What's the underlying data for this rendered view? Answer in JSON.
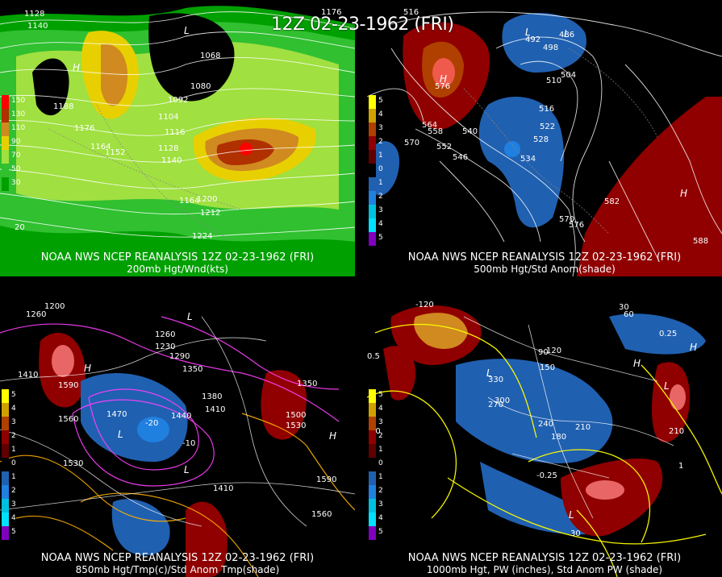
{
  "header": {
    "title": "12Z 02-23-1962 (FRI)"
  },
  "panels": [
    {
      "caption_line1": "NOAA NWS NCEP REANALYSIS 12Z 02-23-1962 (FRI)",
      "caption_line2": "200mb Hgt/Wnd(kts)",
      "legend": [
        {
          "label": "150",
          "color": "#ff0000"
        },
        {
          "label": "130",
          "color": "#b03000"
        },
        {
          "label": "110",
          "color": "#d08a20"
        },
        {
          "label": "90",
          "color": "#e8d000"
        },
        {
          "label": "70",
          "color": "#a0e040"
        },
        {
          "label": "50",
          "color": "#30c030"
        },
        {
          "label": "30",
          "color": "#00a000"
        }
      ],
      "contour_labels": [
        "1128",
        "1140",
        "1188",
        "1176",
        "1164",
        "1152",
        "1104",
        "1116",
        "1128",
        "1140",
        "1068",
        "1080",
        "1092",
        "1164",
        "1200",
        "1212",
        "1224",
        "1176",
        "20"
      ],
      "highs": [
        "H"
      ],
      "lows": [
        "L"
      ]
    },
    {
      "caption_line1": "NOAA NWS NCEP REANALYSIS 12Z 02-23-1962 (FRI)",
      "caption_line2": "500mb Hgt/Std Anom(shade)",
      "legend": [
        {
          "label": "5",
          "color": "#ffff00"
        },
        {
          "label": "4",
          "color": "#d0a000"
        },
        {
          "label": "3",
          "color": "#b04000"
        },
        {
          "label": "2",
          "color": "#900000"
        },
        {
          "label": "1",
          "color": "#600000"
        },
        {
          "label": "0",
          "color": "#000000"
        },
        {
          "label": "1",
          "color": "#2060b0"
        },
        {
          "label": "2",
          "color": "#2080e0"
        },
        {
          "label": "3",
          "color": "#00c0e0"
        },
        {
          "label": "4",
          "color": "#00e0ff"
        },
        {
          "label": "5",
          "color": "#8000c0"
        }
      ],
      "contour_labels": [
        "516",
        "492",
        "498",
        "486",
        "504",
        "510",
        "516",
        "522",
        "528",
        "534",
        "540",
        "546",
        "552",
        "558",
        "564",
        "570",
        "576",
        "582",
        "588",
        "570",
        "576"
      ],
      "highs": [
        "H",
        "H"
      ],
      "lows": [
        "L",
        "L"
      ]
    },
    {
      "caption_line1": "NOAA NWS NCEP REANALYSIS 12Z 02-23-1962 (FRI)",
      "caption_line2": "850mb Hgt/Tmp(c)/Std Anom Tmp(shade)",
      "legend": [
        {
          "label": "5",
          "color": "#ffff00"
        },
        {
          "label": "4",
          "color": "#d0a000"
        },
        {
          "label": "3",
          "color": "#b04000"
        },
        {
          "label": "2",
          "color": "#900000"
        },
        {
          "label": "1",
          "color": "#600000"
        },
        {
          "label": "0",
          "color": "#000000"
        },
        {
          "label": "1",
          "color": "#2060b0"
        },
        {
          "label": "2",
          "color": "#2080e0"
        },
        {
          "label": "3",
          "color": "#00c0e0"
        },
        {
          "label": "4",
          "color": "#00e0ff"
        },
        {
          "label": "5",
          "color": "#8000c0"
        }
      ],
      "contour_labels": [
        "1200",
        "1260",
        "1410",
        "1590",
        "1560",
        "1530",
        "1470",
        "1440",
        "1380",
        "1410",
        "1350",
        "1290",
        "1260",
        "1230",
        "1500",
        "1530",
        "1590",
        "1560",
        "1410",
        "1350",
        "-10",
        "-20"
      ],
      "highs": [
        "H",
        "H"
      ],
      "lows": [
        "L",
        "L",
        "L"
      ]
    },
    {
      "caption_line1": "NOAA NWS NCEP REANALYSIS 12Z 02-23-1962 (FRI)",
      "caption_line2": "1000mb Hgt, PW (inches), Std Anom PW (shade)",
      "legend": [
        {
          "label": "5",
          "color": "#ffff00"
        },
        {
          "label": "4",
          "color": "#d0a000"
        },
        {
          "label": "3",
          "color": "#b04000"
        },
        {
          "label": "2",
          "color": "#900000"
        },
        {
          "label": "1",
          "color": "#600000"
        },
        {
          "label": "0",
          "color": "#000000"
        },
        {
          "label": "1",
          "color": "#2060b0"
        },
        {
          "label": "2",
          "color": "#2080e0"
        },
        {
          "label": "3",
          "color": "#00c0e0"
        },
        {
          "label": "4",
          "color": "#00e0ff"
        },
        {
          "label": "5",
          "color": "#8000c0"
        }
      ],
      "contour_labels": [
        "-120",
        "30",
        "60",
        "90",
        "120",
        "150",
        "180",
        "210",
        "240",
        "270",
        "300",
        "330",
        "0.25",
        "0.5",
        "-0.25",
        "1",
        "210",
        "90",
        "30"
      ],
      "highs": [
        "H",
        "H"
      ],
      "lows": [
        "L",
        "L",
        "L"
      ]
    }
  ]
}
